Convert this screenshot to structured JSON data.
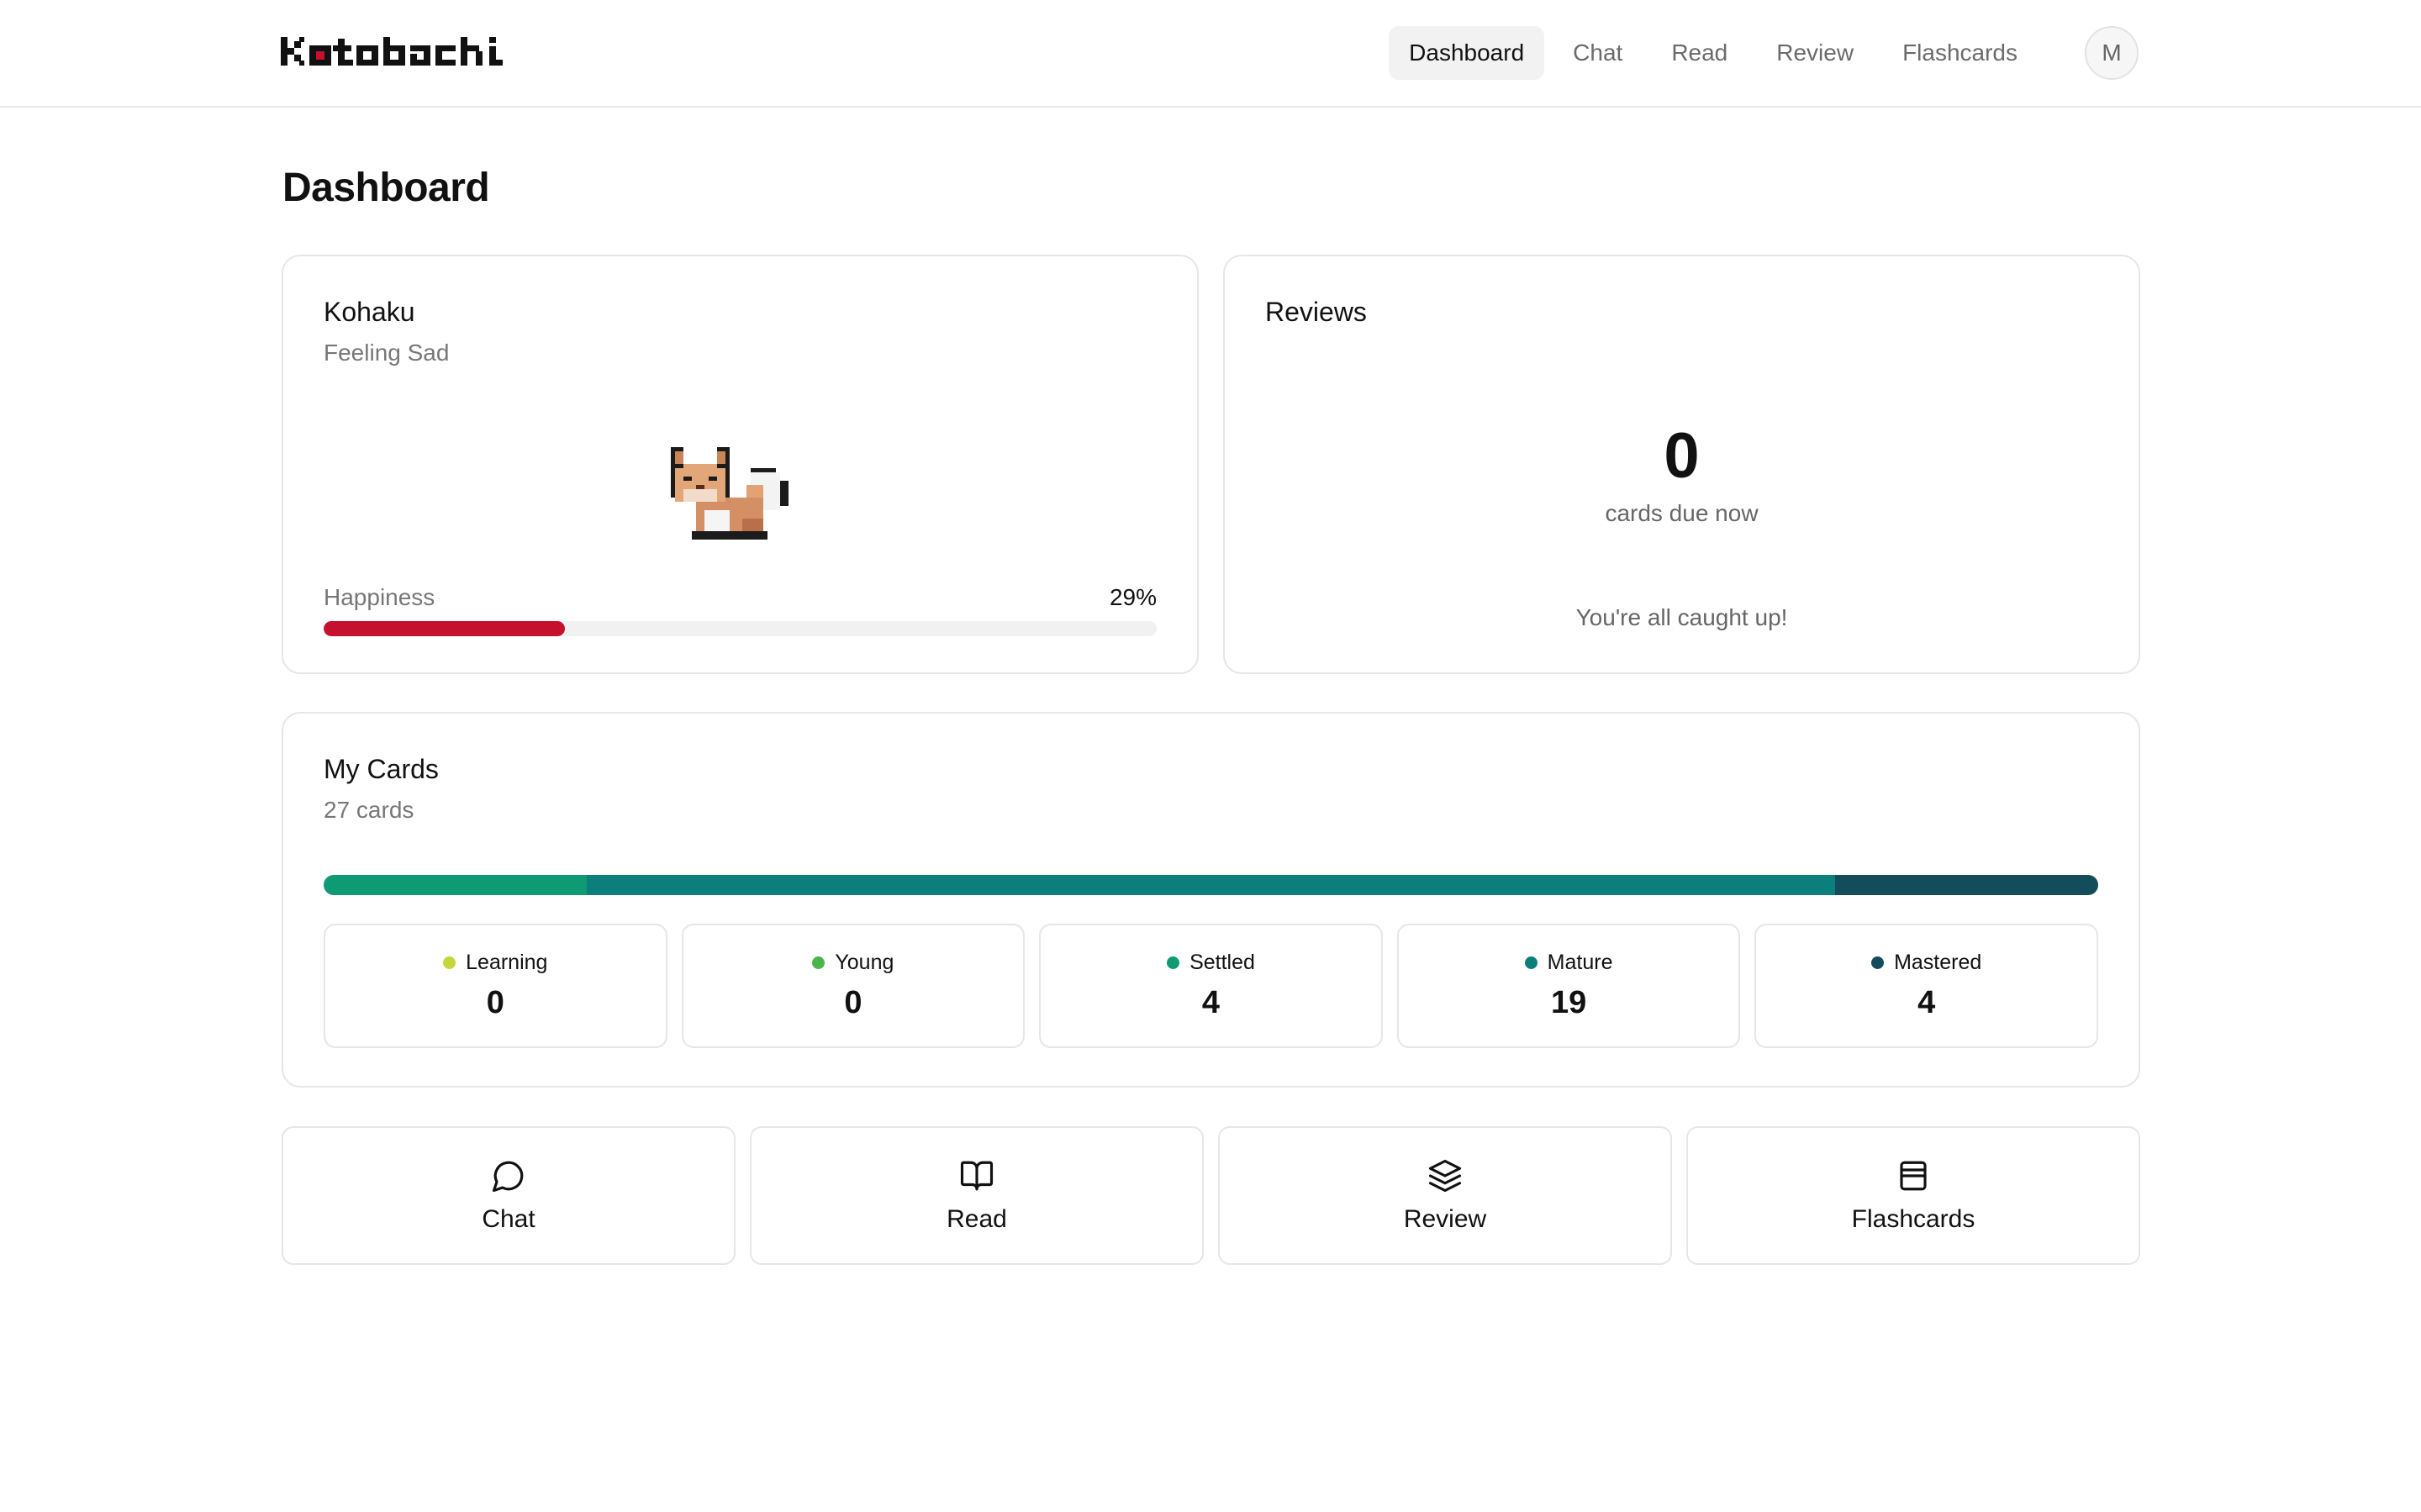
{
  "app": {
    "name": "Kotobachi"
  },
  "nav": {
    "items": [
      {
        "label": "Dashboard",
        "active": true
      },
      {
        "label": "Chat",
        "active": false
      },
      {
        "label": "Read",
        "active": false
      },
      {
        "label": "Review",
        "active": false
      },
      {
        "label": "Flashcards",
        "active": false
      }
    ],
    "avatar_initial": "M"
  },
  "page": {
    "title": "Dashboard"
  },
  "pet": {
    "name": "Kohaku",
    "mood": "Feeling Sad",
    "happiness_label": "Happiness",
    "happiness_value": "29%",
    "happiness_fraction": 0.29,
    "bar_color": "#c5102e"
  },
  "reviews": {
    "title": "Reviews",
    "due_count": "0",
    "due_label": "cards due now",
    "status": "You're all caught up!"
  },
  "my_cards": {
    "title": "My Cards",
    "subtitle": "27 cards",
    "stages": [
      {
        "label": "Learning",
        "value": "0",
        "count": 0,
        "color": "#c4d63a"
      },
      {
        "label": "Young",
        "value": "0",
        "count": 0,
        "color": "#4bb54a"
      },
      {
        "label": "Settled",
        "value": "4",
        "count": 4,
        "color": "#0e9a72"
      },
      {
        "label": "Mature",
        "value": "19",
        "count": 19,
        "color": "#0b7f7c"
      },
      {
        "label": "Mastered",
        "value": "4",
        "count": 4,
        "color": "#134c5a"
      }
    ]
  },
  "actions": [
    {
      "label": "Chat",
      "icon": "chat-bubble-icon"
    },
    {
      "label": "Read",
      "icon": "open-book-icon"
    },
    {
      "label": "Review",
      "icon": "layers-icon"
    },
    {
      "label": "Flashcards",
      "icon": "card-box-icon"
    }
  ]
}
